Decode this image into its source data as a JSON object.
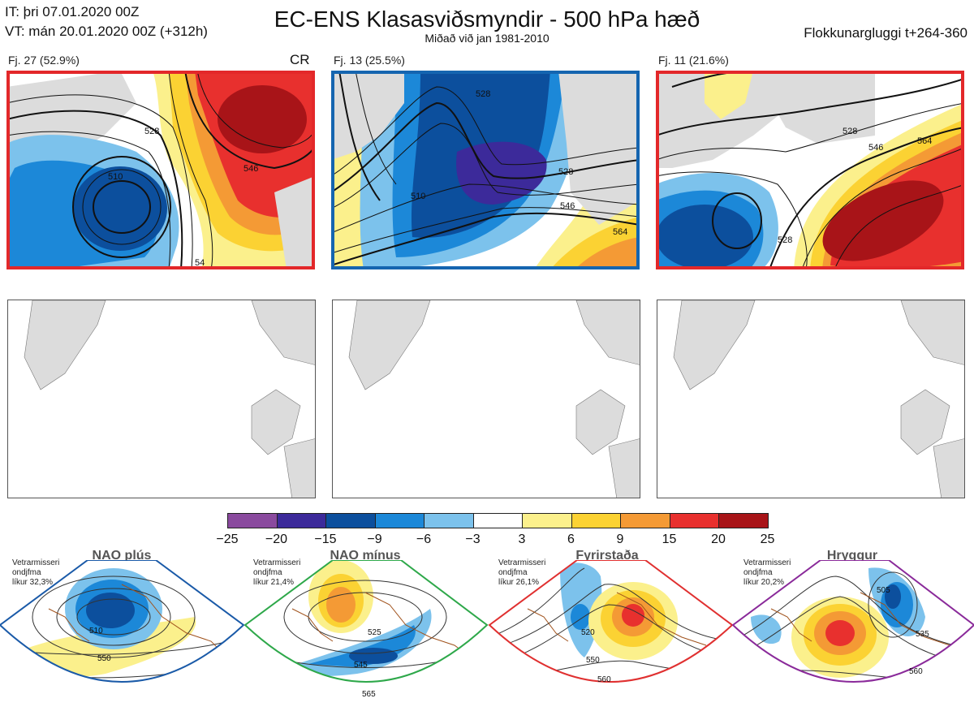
{
  "header": {
    "it_line": "IT: þri 07.01.2020 00Z",
    "vt_line": "VT: mán 20.01.2020 00Z  (+312h)",
    "title": "EC-ENS Klasasviðsmyndir - 500 hPa hæð",
    "subtitle": "Miðað við jan 1981-2010",
    "window": "Flokkunargluggi t+264-360"
  },
  "clusters": [
    {
      "label": "Fj. 27 (52.9%)",
      "tag": "CR",
      "frame_color": "#e3282a",
      "contours": [
        "510",
        "528",
        "546",
        "54"
      ]
    },
    {
      "label": "Fj. 13 (25.5%)",
      "tag": "",
      "frame_color": "#1565b0",
      "contours": [
        "528",
        "510",
        "528",
        "546",
        "564"
      ]
    },
    {
      "label": "Fj. 11 (21.6%)",
      "tag": "",
      "frame_color": "#e3282a",
      "contours": [
        "528",
        "546",
        "564",
        "528"
      ]
    }
  ],
  "colorbar": {
    "labels": [
      "−25",
      "−20",
      "−15",
      "−9",
      "−6",
      "−3",
      "3",
      "6",
      "9",
      "15",
      "20",
      "25"
    ],
    "colors": [
      "#8a4a9e",
      "#3c2a9a",
      "#0c4f9d",
      "#1c88d8",
      "#7cc2ec",
      "#ffffff",
      "#fbf08c",
      "#fbd233",
      "#f49a35",
      "#e8302e",
      "#a81418"
    ]
  },
  "regimes": [
    {
      "name": "NAO plús",
      "info": [
        "Vetrarmisseri",
        "ondjfma",
        "líkur 32,3%"
      ],
      "dot_color": "#0b4fa0",
      "frame_color": "#1a5aa8",
      "contours": [
        "510",
        "550"
      ]
    },
    {
      "name": "NAO mínus",
      "info": [
        "Vetrarmisseri",
        "ondjfma",
        "líkur 21,4%"
      ],
      "dot_color": "#22aa44",
      "frame_color": "#2ea84a",
      "contours": [
        "525",
        "545",
        "565"
      ]
    },
    {
      "name": "Fyrirstaða",
      "info": [
        "Vetrarmisseri",
        "ondjfma",
        "líkur 26,1%"
      ],
      "dot_color": "#e8262a",
      "frame_color": "#e03030",
      "contours": [
        "520",
        "550",
        "560"
      ]
    },
    {
      "name": "Hryggur",
      "info": [
        "Vetrarmisseri",
        "ondjfma",
        "líkur 20,2%"
      ],
      "dot_color": "#ee6fe8",
      "frame_color": "#8a2a9a",
      "contours": [
        "505",
        "535",
        "560"
      ]
    }
  ]
}
